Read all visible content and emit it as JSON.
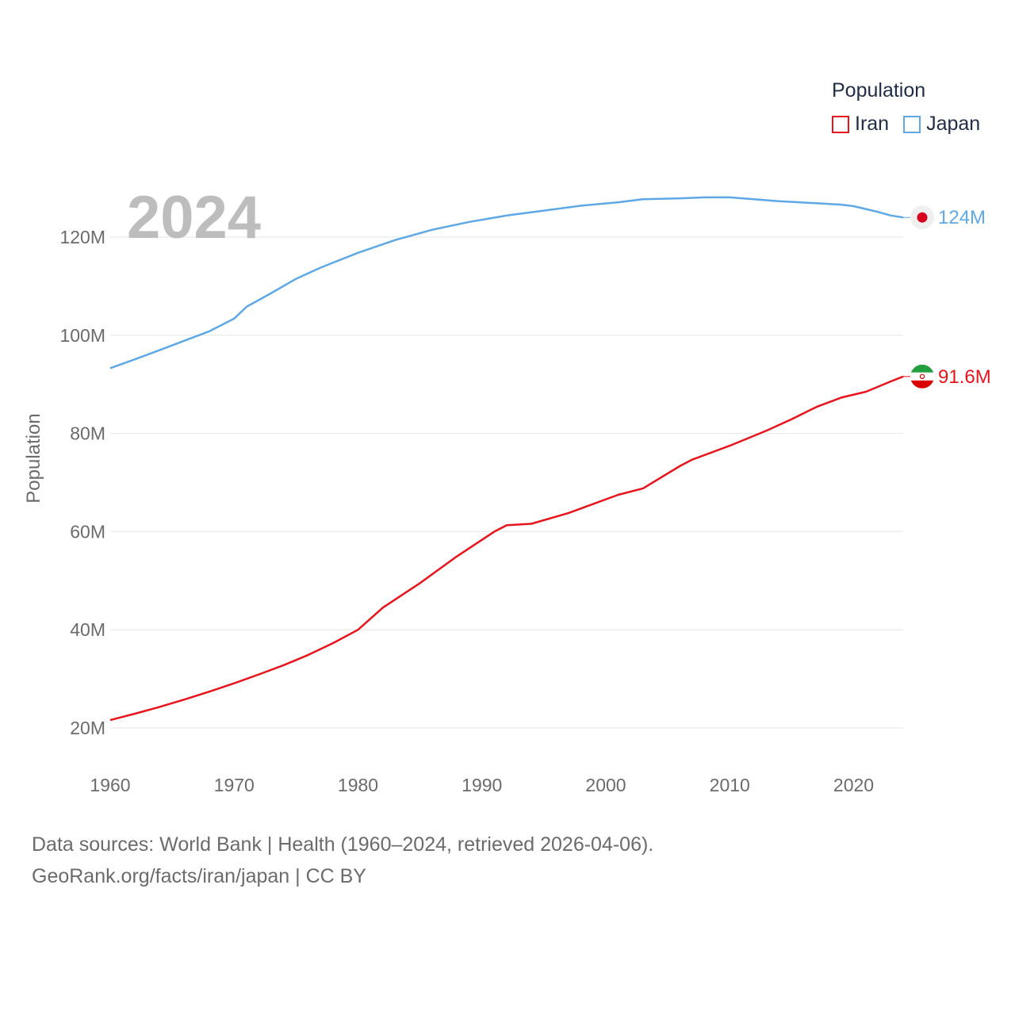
{
  "chart_data": {
    "type": "line",
    "title": "Population",
    "xlabel": "",
    "ylabel": "Population",
    "xlim": [
      1960,
      2024
    ],
    "ylim": [
      18000000,
      133000000
    ],
    "year_display": "2024",
    "x_ticks": [
      1960,
      1970,
      1980,
      1990,
      2000,
      2010,
      2020
    ],
    "y_ticks": [
      {
        "value": 20000000,
        "label": "20M"
      },
      {
        "value": 40000000,
        "label": "40M"
      },
      {
        "value": 60000000,
        "label": "60M"
      },
      {
        "value": 80000000,
        "label": "80M"
      },
      {
        "value": 100000000,
        "label": "100M"
      },
      {
        "value": 120000000,
        "label": "120M"
      }
    ],
    "legend_title": "Population",
    "series": [
      {
        "name": "Iran",
        "color": "#e8141c",
        "end_label": "91.6M",
        "icon": "iran-flag-icon",
        "points": [
          [
            1960,
            21.6
          ],
          [
            1962,
            22.9
          ],
          [
            1964,
            24.3
          ],
          [
            1966,
            25.8
          ],
          [
            1968,
            27.4
          ],
          [
            1970,
            29.1
          ],
          [
            1972,
            30.9
          ],
          [
            1974,
            32.8
          ],
          [
            1976,
            34.9
          ],
          [
            1978,
            37.3
          ],
          [
            1980,
            40.0
          ],
          [
            1982,
            44.5
          ],
          [
            1985,
            49.5
          ],
          [
            1988,
            55.0
          ],
          [
            1991,
            60.0
          ],
          [
            1992,
            61.3
          ],
          [
            1994,
            61.6
          ],
          [
            1997,
            63.8
          ],
          [
            2001,
            67.5
          ],
          [
            2003,
            68.8
          ],
          [
            2006,
            73.4
          ],
          [
            2007,
            74.7
          ],
          [
            2010,
            77.5
          ],
          [
            2013,
            80.6
          ],
          [
            2015,
            82.9
          ],
          [
            2017,
            85.4
          ],
          [
            2019,
            87.3
          ],
          [
            2021,
            88.5
          ],
          [
            2023,
            90.6
          ],
          [
            2024,
            91.6
          ]
        ]
      },
      {
        "name": "Japan",
        "color": "#5fa8e6",
        "end_label": "124M",
        "icon": "japan-flag-icon",
        "points": [
          [
            1960,
            93.3
          ],
          [
            1962,
            95.1
          ],
          [
            1964,
            97.0
          ],
          [
            1966,
            98.9
          ],
          [
            1968,
            100.8
          ],
          [
            1970,
            103.4
          ],
          [
            1971,
            105.8
          ],
          [
            1973,
            108.6
          ],
          [
            1975,
            111.5
          ],
          [
            1977,
            113.8
          ],
          [
            1980,
            116.8
          ],
          [
            1983,
            119.4
          ],
          [
            1986,
            121.5
          ],
          [
            1989,
            123.1
          ],
          [
            1992,
            124.4
          ],
          [
            1995,
            125.4
          ],
          [
            1998,
            126.4
          ],
          [
            2001,
            127.1
          ],
          [
            2003,
            127.7
          ],
          [
            2006,
            127.9
          ],
          [
            2008,
            128.1
          ],
          [
            2010,
            128.1
          ],
          [
            2014,
            127.3
          ],
          [
            2017,
            126.9
          ],
          [
            2019,
            126.6
          ],
          [
            2020,
            126.3
          ],
          [
            2022,
            125.1
          ],
          [
            2023,
            124.4
          ],
          [
            2024,
            124.0
          ]
        ]
      }
    ]
  },
  "legend": {
    "title": "Population",
    "items": [
      {
        "label": "Iran",
        "color": "#e8141c"
      },
      {
        "label": "Japan",
        "color": "#5fa8e6"
      }
    ]
  },
  "source": {
    "line1": "Data sources: World Bank | Health (1960–2024, retrieved 2026-04-06).",
    "line2": "GeoRank.org/facts/iran/japan | CC BY"
  }
}
